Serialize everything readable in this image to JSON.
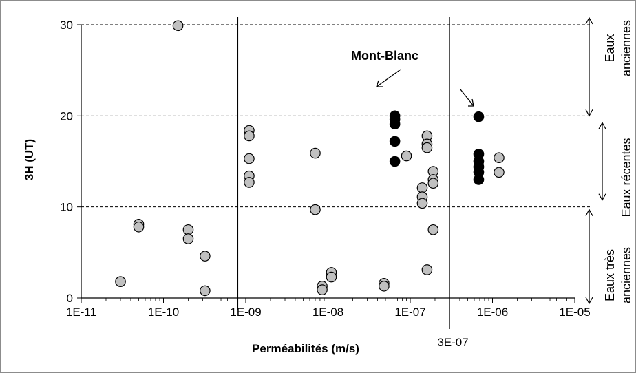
{
  "chart_data": {
    "type": "scatter",
    "title": "",
    "xlabel": "Perméabilités (m/s)",
    "ylabel": "3H (UT)",
    "x_scale": "log",
    "xlim": [
      1e-11,
      1e-05
    ],
    "ylim": [
      0,
      30
    ],
    "x_tick_labels": [
      "1E-11",
      "1E-10",
      "1E-09",
      "1E-08",
      "1E-07",
      "1E-06",
      "1E-05"
    ],
    "y_tick_labels": [
      "0",
      "10",
      "20",
      "30"
    ],
    "threshold_lines_y": [
      10,
      20,
      30
    ],
    "vertical_lines_x": [
      8e-10,
      3e-07
    ],
    "vertical_line_label": "3E-07",
    "annotation": "Mont-Blanc",
    "zones": [
      {
        "label_lines": [
          "Eaux",
          "anciennes"
        ],
        "y_range": [
          20,
          30
        ]
      },
      {
        "label_lines": [
          "Eaux récentes"
        ],
        "y_range": [
          10,
          20
        ]
      },
      {
        "label_lines": [
          "Eaux très",
          "anciennes"
        ],
        "y_range": [
          0,
          10
        ]
      }
    ],
    "series": [
      {
        "color": "#c0c0c0",
        "points": [
          [
            3e-11,
            1.8
          ],
          [
            5e-11,
            8.1
          ],
          [
            5e-11,
            7.8
          ],
          [
            1.5e-10,
            29.9
          ],
          [
            2e-10,
            7.5
          ],
          [
            2e-10,
            6.5
          ],
          [
            3.2e-10,
            4.6
          ],
          [
            3.2e-10,
            0.8
          ],
          [
            1.1e-09,
            18.4
          ],
          [
            1.1e-09,
            17.8
          ],
          [
            1.1e-09,
            15.3
          ],
          [
            1.1e-09,
            13.4
          ],
          [
            1.1e-09,
            12.7
          ],
          [
            7e-09,
            15.9
          ],
          [
            7e-09,
            9.7
          ],
          [
            8.5e-09,
            1.3
          ],
          [
            8.5e-09,
            0.9
          ],
          [
            1.1e-08,
            2.8
          ],
          [
            1.1e-08,
            2.3
          ],
          [
            4.8e-08,
            1.6
          ],
          [
            4.8e-08,
            1.3
          ],
          [
            9e-08,
            15.6
          ],
          [
            1.4e-07,
            12.1
          ],
          [
            1.4e-07,
            11.1
          ],
          [
            1.4e-07,
            10.4
          ],
          [
            1.6e-07,
            17.8
          ],
          [
            1.6e-07,
            16.9
          ],
          [
            1.6e-07,
            16.5
          ],
          [
            1.6e-07,
            3.1
          ],
          [
            1.9e-07,
            13.9
          ],
          [
            1.9e-07,
            13.0
          ],
          [
            1.9e-07,
            12.6
          ],
          [
            1.9e-07,
            7.5
          ],
          [
            1.2e-06,
            15.4
          ],
          [
            1.2e-06,
            13.8
          ]
        ]
      },
      {
        "name": "Mont-Blanc",
        "color": "#000000",
        "points": [
          [
            6.5e-08,
            20.0
          ],
          [
            6.5e-08,
            19.6
          ],
          [
            6.5e-08,
            19.1
          ],
          [
            6.5e-08,
            17.2
          ],
          [
            6.5e-08,
            15.0
          ],
          [
            6.8e-07,
            19.9
          ],
          [
            6.8e-07,
            15.8
          ],
          [
            6.8e-07,
            15.0
          ],
          [
            6.8e-07,
            14.4
          ],
          [
            6.8e-07,
            13.8
          ],
          [
            6.8e-07,
            13.0
          ]
        ]
      }
    ]
  }
}
